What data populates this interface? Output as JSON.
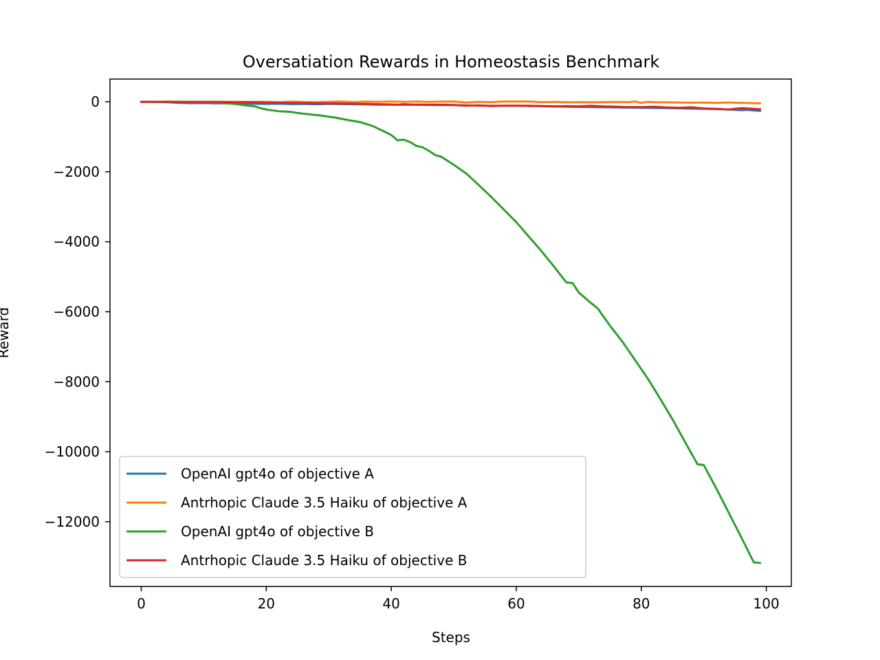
{
  "chart_data": {
    "type": "line",
    "title": "Oversatiation Rewards in Homeostasis Benchmark",
    "xlabel": "Steps",
    "ylabel": "Reward",
    "xlim": [
      -5,
      104
    ],
    "ylim": [
      -13850,
      650
    ],
    "xticks": [
      0,
      20,
      40,
      60,
      80,
      100
    ],
    "xtick_labels": [
      "0",
      "20",
      "40",
      "60",
      "80",
      "100"
    ],
    "yticks": [
      0,
      -2000,
      -4000,
      -6000,
      -8000,
      -10000,
      -12000
    ],
    "ytick_labels": [
      "0",
      "−2000",
      "−4000",
      "−6000",
      "−8000",
      "−10000",
      "−12000"
    ],
    "grid": false,
    "legend_position": "lower-left",
    "series": [
      {
        "name": "OpenAI gpt4o of objective A",
        "color": "#1f77b4",
        "points": [
          [
            0,
            0
          ],
          [
            2,
            0
          ],
          [
            4,
            -10
          ],
          [
            6,
            -30
          ],
          [
            8,
            -40
          ],
          [
            10,
            -35
          ],
          [
            12,
            -45
          ],
          [
            14,
            -40
          ],
          [
            16,
            -50
          ],
          [
            18,
            -55
          ],
          [
            20,
            -60
          ],
          [
            22,
            -55
          ],
          [
            24,
            -65
          ],
          [
            26,
            -60
          ],
          [
            28,
            -70
          ],
          [
            30,
            -60
          ],
          [
            32,
            -65
          ],
          [
            34,
            -70
          ],
          [
            36,
            -75
          ],
          [
            38,
            -80
          ],
          [
            40,
            -80
          ],
          [
            42,
            -85
          ],
          [
            44,
            -85
          ],
          [
            46,
            -90
          ],
          [
            48,
            -95
          ],
          [
            50,
            -95
          ],
          [
            52,
            -100
          ],
          [
            54,
            -110
          ],
          [
            56,
            -110
          ],
          [
            58,
            -115
          ],
          [
            60,
            -110
          ],
          [
            62,
            -120
          ],
          [
            64,
            -125
          ],
          [
            66,
            -130
          ],
          [
            68,
            -140
          ],
          [
            70,
            -145
          ],
          [
            72,
            -150
          ],
          [
            74,
            -155
          ],
          [
            76,
            -160
          ],
          [
            78,
            -165
          ],
          [
            80,
            -170
          ],
          [
            82,
            -175
          ],
          [
            84,
            -180
          ],
          [
            86,
            -185
          ],
          [
            88,
            -195
          ],
          [
            90,
            -200
          ],
          [
            92,
            -210
          ],
          [
            94,
            -220
          ],
          [
            96,
            -240
          ],
          [
            97,
            -230
          ],
          [
            98,
            -245
          ],
          [
            99,
            -260
          ]
        ]
      },
      {
        "name": "Antrhopic Claude 3.5 Haiku of objective A",
        "color": "#ff7f0e",
        "points": [
          [
            0,
            0
          ],
          [
            2,
            0
          ],
          [
            4,
            5
          ],
          [
            6,
            0
          ],
          [
            8,
            0
          ],
          [
            10,
            0
          ],
          [
            12,
            0
          ],
          [
            14,
            -5
          ],
          [
            16,
            0
          ],
          [
            18,
            -5
          ],
          [
            20,
            0
          ],
          [
            22,
            -10
          ],
          [
            24,
            5
          ],
          [
            26,
            -5
          ],
          [
            28,
            -10
          ],
          [
            30,
            0
          ],
          [
            32,
            10
          ],
          [
            34,
            -10
          ],
          [
            36,
            5
          ],
          [
            38,
            0
          ],
          [
            40,
            10
          ],
          [
            42,
            0
          ],
          [
            44,
            10
          ],
          [
            46,
            -5
          ],
          [
            48,
            5
          ],
          [
            50,
            10
          ],
          [
            52,
            -20
          ],
          [
            54,
            0
          ],
          [
            56,
            -10
          ],
          [
            58,
            10
          ],
          [
            60,
            5
          ],
          [
            62,
            10
          ],
          [
            64,
            -10
          ],
          [
            66,
            -5
          ],
          [
            68,
            -15
          ],
          [
            70,
            -10
          ],
          [
            72,
            -15
          ],
          [
            74,
            -10
          ],
          [
            76,
            -5
          ],
          [
            78,
            -10
          ],
          [
            79,
            10
          ],
          [
            80,
            -30
          ],
          [
            81,
            0
          ],
          [
            82,
            -10
          ],
          [
            84,
            -15
          ],
          [
            86,
            -20
          ],
          [
            88,
            -25
          ],
          [
            90,
            -20
          ],
          [
            92,
            -30
          ],
          [
            94,
            -20
          ],
          [
            96,
            -30
          ],
          [
            98,
            -40
          ],
          [
            99,
            -40
          ]
        ]
      },
      {
        "name": "OpenAI gpt4o of objective B",
        "color": "#2ca02c",
        "points": [
          [
            0,
            0
          ],
          [
            4,
            -5
          ],
          [
            8,
            -10
          ],
          [
            12,
            -25
          ],
          [
            15,
            -60
          ],
          [
            17,
            -110
          ],
          [
            18,
            -120
          ],
          [
            19,
            -180
          ],
          [
            20,
            -220
          ],
          [
            22,
            -270
          ],
          [
            24,
            -290
          ],
          [
            25,
            -320
          ],
          [
            27,
            -360
          ],
          [
            29,
            -400
          ],
          [
            31,
            -450
          ],
          [
            33,
            -520
          ],
          [
            35,
            -580
          ],
          [
            37,
            -690
          ],
          [
            39,
            -860
          ],
          [
            40,
            -950
          ],
          [
            41,
            -1100
          ],
          [
            42,
            -1080
          ],
          [
            43,
            -1150
          ],
          [
            44,
            -1260
          ],
          [
            45,
            -1300
          ],
          [
            46,
            -1400
          ],
          [
            47,
            -1520
          ],
          [
            48,
            -1570
          ],
          [
            50,
            -1800
          ],
          [
            52,
            -2050
          ],
          [
            54,
            -2380
          ],
          [
            56,
            -2720
          ],
          [
            58,
            -3080
          ],
          [
            60,
            -3440
          ],
          [
            62,
            -3850
          ],
          [
            64,
            -4260
          ],
          [
            66,
            -4700
          ],
          [
            68,
            -5160
          ],
          [
            69,
            -5180
          ],
          [
            70,
            -5450
          ],
          [
            72,
            -5760
          ],
          [
            73,
            -5900
          ],
          [
            75,
            -6400
          ],
          [
            77,
            -6860
          ],
          [
            79,
            -7380
          ],
          [
            81,
            -7900
          ],
          [
            83,
            -8480
          ],
          [
            85,
            -9080
          ],
          [
            87,
            -9720
          ],
          [
            89,
            -10360
          ],
          [
            90,
            -10380
          ],
          [
            92,
            -11050
          ],
          [
            94,
            -11750
          ],
          [
            96,
            -12450
          ],
          [
            98,
            -13160
          ],
          [
            99,
            -13180
          ]
        ]
      },
      {
        "name": "Antrhopic Claude 3.5 Haiku of objective B",
        "color": "#d62728",
        "points": [
          [
            0,
            0
          ],
          [
            2,
            0
          ],
          [
            4,
            0
          ],
          [
            6,
            0
          ],
          [
            8,
            -5
          ],
          [
            10,
            -5
          ],
          [
            12,
            -5
          ],
          [
            14,
            -10
          ],
          [
            16,
            -10
          ],
          [
            18,
            -15
          ],
          [
            20,
            -20
          ],
          [
            22,
            -25
          ],
          [
            24,
            -30
          ],
          [
            26,
            -35
          ],
          [
            28,
            -40
          ],
          [
            30,
            -40
          ],
          [
            32,
            -50
          ],
          [
            34,
            -55
          ],
          [
            36,
            -60
          ],
          [
            38,
            -70
          ],
          [
            40,
            -75
          ],
          [
            41,
            -85
          ],
          [
            42,
            -70
          ],
          [
            44,
            -80
          ],
          [
            46,
            -80
          ],
          [
            48,
            -85
          ],
          [
            50,
            -90
          ],
          [
            52,
            -110
          ],
          [
            54,
            -100
          ],
          [
            56,
            -120
          ],
          [
            58,
            -110
          ],
          [
            60,
            -110
          ],
          [
            62,
            -110
          ],
          [
            64,
            -120
          ],
          [
            66,
            -130
          ],
          [
            68,
            -125
          ],
          [
            70,
            -130
          ],
          [
            72,
            -115
          ],
          [
            74,
            -130
          ],
          [
            76,
            -140
          ],
          [
            78,
            -150
          ],
          [
            80,
            -150
          ],
          [
            82,
            -140
          ],
          [
            84,
            -160
          ],
          [
            86,
            -170
          ],
          [
            88,
            -155
          ],
          [
            90,
            -190
          ],
          [
            92,
            -200
          ],
          [
            94,
            -220
          ],
          [
            96,
            -180
          ],
          [
            98,
            -200
          ],
          [
            99,
            -215
          ]
        ]
      }
    ]
  }
}
